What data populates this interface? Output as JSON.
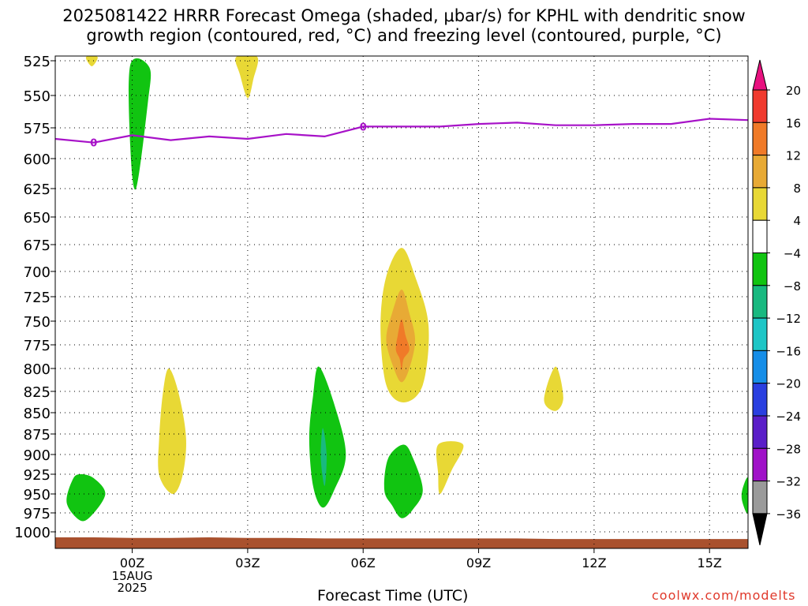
{
  "title_line1": "2025081422 HRRR Forecast Omega (shaded, μbar/s) for KPHL with dendritic snow",
  "title_line2": "growth region (contoured, red, °C) and freezing level (contoured, purple, °C)",
  "xaxis_label": "Forecast Time (UTC)",
  "credit": "coolwx.com/modelts",
  "date_label": [
    "15AUG",
    "2025"
  ],
  "chart_data": {
    "type": "heatmap",
    "title": "2025081422 HRRR Forecast Omega (shaded, μbar/s) for KPHL with dendritic snow growth region (contoured, red, °C) and freezing level (contoured, purple, °C)",
    "xlabel": "Forecast Time (UTC)",
    "ylabel": "",
    "x_ticks": [
      "00Z",
      "03Z",
      "06Z",
      "09Z",
      "12Z",
      "15Z"
    ],
    "y_ticks": [
      525,
      550,
      575,
      600,
      625,
      650,
      675,
      700,
      725,
      750,
      775,
      800,
      825,
      850,
      875,
      900,
      925,
      950,
      975,
      1000
    ],
    "ylim": [
      1000,
      520
    ],
    "xlim_hours": [
      -2,
      16
    ],
    "grid": true,
    "colorbar": {
      "labels": [
        20,
        16,
        12,
        8,
        4,
        -4,
        -8,
        -12,
        -16,
        -20,
        -24,
        -28,
        -32,
        -36
      ],
      "colors": [
        "#e8117f",
        "#f03a2e",
        "#f07a28",
        "#e8aa35",
        "#e8d835",
        "#ffffff",
        "#11c411",
        "#19b980",
        "#1ec6c6",
        "#168ee8",
        "#2a3fe0",
        "#5a1ec8",
        "#a012c8",
        "#9a9a9a",
        "#000000"
      ]
    },
    "freezing_level_label": "0",
    "freezing_level": [
      {
        "hour": -2,
        "p": 584
      },
      {
        "hour": -1,
        "p": 587
      },
      {
        "hour": 0,
        "p": 581
      },
      {
        "hour": 1,
        "p": 585
      },
      {
        "hour": 2,
        "p": 582
      },
      {
        "hour": 3,
        "p": 584
      },
      {
        "hour": 4,
        "p": 580
      },
      {
        "hour": 5,
        "p": 582
      },
      {
        "hour": 6,
        "p": 574
      },
      {
        "hour": 7,
        "p": 574
      },
      {
        "hour": 8,
        "p": 574
      },
      {
        "hour": 9,
        "p": 572
      },
      {
        "hour": 10,
        "p": 571
      },
      {
        "hour": 11,
        "p": 573
      },
      {
        "hour": 12,
        "p": 573
      },
      {
        "hour": 13,
        "p": 572
      },
      {
        "hour": 14,
        "p": 572
      },
      {
        "hour": 15,
        "p": 568
      },
      {
        "hour": 16,
        "p": 569
      }
    ],
    "omega_regions": [
      {
        "name": "green-top",
        "color": "#11c411",
        "points": [
          [
            -0.05,
            528
          ],
          [
            0.45,
            530
          ],
          [
            0.4,
            557
          ],
          [
            0.1,
            625
          ],
          [
            -0.05,
            590
          ]
        ]
      },
      {
        "name": "yellow-top-left",
        "color": "#e8d835",
        "points": [
          [
            -1.2,
            521
          ],
          [
            -0.9,
            521
          ],
          [
            -1.05,
            529
          ]
        ]
      },
      {
        "name": "yellow-top-mid",
        "color": "#e8d835",
        "points": [
          [
            2.7,
            521
          ],
          [
            3.25,
            521
          ],
          [
            3.15,
            538
          ],
          [
            3.0,
            552
          ],
          [
            2.8,
            535
          ]
        ]
      },
      {
        "name": "yellow-01z",
        "color": "#e8d835",
        "points": [
          [
            0.95,
            800
          ],
          [
            1.2,
            826
          ],
          [
            1.4,
            880
          ],
          [
            1.3,
            928
          ],
          [
            1.05,
            950
          ],
          [
            0.7,
            926
          ],
          [
            0.7,
            880
          ],
          [
            0.8,
            826
          ]
        ]
      },
      {
        "name": "yellow-center",
        "color": "#e8d835",
        "points": [
          [
            7.0,
            678
          ],
          [
            7.35,
            705
          ],
          [
            7.7,
            755
          ],
          [
            7.55,
            818
          ],
          [
            7.05,
            838
          ],
          [
            6.6,
            818
          ],
          [
            6.45,
            755
          ],
          [
            6.6,
            705
          ]
        ]
      },
      {
        "name": "gold-center",
        "color": "#e8aa35",
        "points": [
          [
            7.0,
            718
          ],
          [
            7.2,
            742
          ],
          [
            7.35,
            770
          ],
          [
            7.2,
            800
          ],
          [
            7.0,
            815
          ],
          [
            6.8,
            800
          ],
          [
            6.6,
            770
          ],
          [
            6.75,
            742
          ]
        ]
      },
      {
        "name": "orange-center",
        "color": "#f07a28",
        "points": [
          [
            7.0,
            748
          ],
          [
            7.1,
            765
          ],
          [
            7.2,
            780
          ],
          [
            7.05,
            790
          ],
          [
            7.0,
            802
          ],
          [
            6.95,
            790
          ],
          [
            6.85,
            780
          ],
          [
            6.9,
            765
          ]
        ]
      },
      {
        "name": "green-05z",
        "color": "#11c411",
        "points": [
          [
            4.85,
            798
          ],
          [
            5.25,
            840
          ],
          [
            5.55,
            900
          ],
          [
            5.25,
            945
          ],
          [
            4.95,
            968
          ],
          [
            4.7,
            940
          ],
          [
            4.6,
            880
          ],
          [
            4.7,
            830
          ]
        ]
      },
      {
        "name": "teal-05z",
        "color": "#19b980",
        "points": [
          [
            4.95,
            868
          ],
          [
            5.05,
            900
          ],
          [
            5.0,
            940
          ],
          [
            4.9,
            905
          ]
        ]
      },
      {
        "name": "green-07z",
        "color": "#11c411",
        "points": [
          [
            7.05,
            888
          ],
          [
            7.3,
            905
          ],
          [
            7.55,
            945
          ],
          [
            7.3,
            970
          ],
          [
            7.0,
            982
          ],
          [
            6.75,
            965
          ],
          [
            6.55,
            945
          ],
          [
            6.65,
            905
          ]
        ]
      },
      {
        "name": "green-left-bottom",
        "color": "#11c411",
        "points": [
          [
            -1.35,
            925
          ],
          [
            -1.0,
            930
          ],
          [
            -0.7,
            950
          ],
          [
            -1.05,
            978
          ],
          [
            -1.35,
            985
          ],
          [
            -1.7,
            962
          ],
          [
            -1.55,
            932
          ]
        ]
      },
      {
        "name": "yellow-08z",
        "color": "#e8d835",
        "points": [
          [
            7.95,
            888
          ],
          [
            8.6,
            888
          ],
          [
            8.3,
            920
          ],
          [
            8.0,
            950
          ],
          [
            7.95,
            925
          ]
        ]
      },
      {
        "name": "yellow-11z",
        "color": "#e8d835",
        "points": [
          [
            11.0,
            798
          ],
          [
            11.2,
            832
          ],
          [
            11.0,
            848
          ],
          [
            10.7,
            835
          ]
        ]
      },
      {
        "name": "green-right-edge",
        "color": "#11c411",
        "points": [
          [
            16.0,
            930
          ],
          [
            16.0,
            975
          ],
          [
            15.85,
            960
          ],
          [
            15.85,
            945
          ]
        ]
      }
    ],
    "surface_color": "#a9512e",
    "surface_p": [
      1010,
      1010,
      1011,
      1011,
      1010,
      1011,
      1011,
      1012,
      1012,
      1012,
      1012,
      1012,
      1012,
      1013,
      1013,
      1013,
      1013,
      1013,
      1013
    ]
  }
}
